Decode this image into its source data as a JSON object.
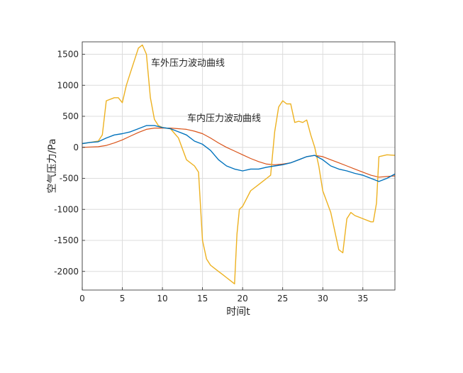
{
  "chart_data": {
    "type": "line",
    "xlabel": "时间t",
    "ylabel": "空气压力/Pa",
    "xlim": [
      0,
      39
    ],
    "ylim": [
      -2300,
      1700
    ],
    "xticks": [
      0,
      5,
      10,
      15,
      20,
      25,
      30,
      35
    ],
    "yticks": [
      1500,
      1000,
      500,
      0,
      -500,
      -1000,
      -1500,
      -2000
    ],
    "grid": true,
    "annotations": [
      {
        "text": "车外压力波动曲线",
        "series": "outside"
      },
      {
        "text": "车内压力波动曲线",
        "series": "inside"
      }
    ],
    "series": [
      {
        "id": "outside",
        "color": "#EDB120",
        "x": [
          0,
          1,
          2,
          2.5,
          3,
          4,
          4.5,
          5,
          5.5,
          6,
          6.5,
          7,
          7.5,
          8,
          8.5,
          9,
          9.5,
          10,
          11,
          12,
          13,
          14,
          14.5,
          15,
          15.5,
          16,
          16.5,
          17,
          17.5,
          18,
          18.5,
          19,
          19.3,
          19.6,
          20,
          21,
          22,
          23,
          23.5,
          24,
          24.5,
          25,
          25.5,
          26,
          26.5,
          27,
          27.5,
          28,
          28.5,
          29,
          29.5,
          30,
          31,
          32,
          32.5,
          33,
          33.5,
          34,
          35,
          36,
          36.3,
          36.7,
          37,
          38,
          39
        ],
        "y": [
          60,
          80,
          100,
          200,
          750,
          800,
          800,
          720,
          1000,
          1200,
          1400,
          1600,
          1650,
          1500,
          800,
          450,
          350,
          320,
          300,
          150,
          -200,
          -300,
          -400,
          -1500,
          -1800,
          -1900,
          -1950,
          -2000,
          -2050,
          -2100,
          -2150,
          -2200,
          -1400,
          -1000,
          -950,
          -700,
          -600,
          -500,
          -450,
          250,
          650,
          750,
          700,
          700,
          400,
          420,
          400,
          440,
          200,
          0,
          -300,
          -700,
          -1050,
          -1650,
          -1700,
          -1150,
          -1050,
          -1100,
          -1150,
          -1200,
          -1200,
          -900,
          -150,
          -120,
          -130
        ]
      },
      {
        "id": "inside",
        "color": "#0072BD",
        "x": [
          0,
          1,
          2,
          3,
          4,
          5,
          6,
          7,
          8,
          9,
          10,
          11,
          12,
          13,
          14,
          15,
          16,
          17,
          18,
          19,
          20,
          21,
          22,
          23,
          24,
          25,
          26,
          27,
          28,
          29,
          30,
          31,
          32,
          33,
          34,
          35,
          36,
          37,
          38,
          39
        ],
        "y": [
          60,
          80,
          90,
          150,
          200,
          220,
          250,
          300,
          350,
          350,
          320,
          300,
          250,
          200,
          100,
          50,
          -50,
          -200,
          -300,
          -350,
          -380,
          -350,
          -350,
          -320,
          -300,
          -280,
          -250,
          -200,
          -150,
          -130,
          -200,
          -300,
          -350,
          -380,
          -420,
          -450,
          -500,
          -550,
          -500,
          -430
        ]
      },
      {
        "id": "inside-smooth",
        "color": "#D95319",
        "x": [
          0,
          1,
          2,
          3,
          4,
          5,
          6,
          7,
          8,
          9,
          10,
          11,
          12,
          13,
          14,
          15,
          16,
          17,
          18,
          19,
          20,
          21,
          22,
          23,
          24,
          25,
          26,
          27,
          28,
          29,
          30,
          31,
          32,
          33,
          34,
          35,
          36,
          37,
          38,
          39
        ],
        "y": [
          0,
          5,
          10,
          30,
          70,
          120,
          180,
          240,
          290,
          310,
          310,
          310,
          300,
          290,
          260,
          220,
          150,
          70,
          0,
          -60,
          -120,
          -180,
          -230,
          -270,
          -280,
          -270,
          -250,
          -200,
          -150,
          -130,
          -150,
          -200,
          -250,
          -300,
          -350,
          -400,
          -450,
          -480,
          -470,
          -460
        ]
      }
    ]
  }
}
